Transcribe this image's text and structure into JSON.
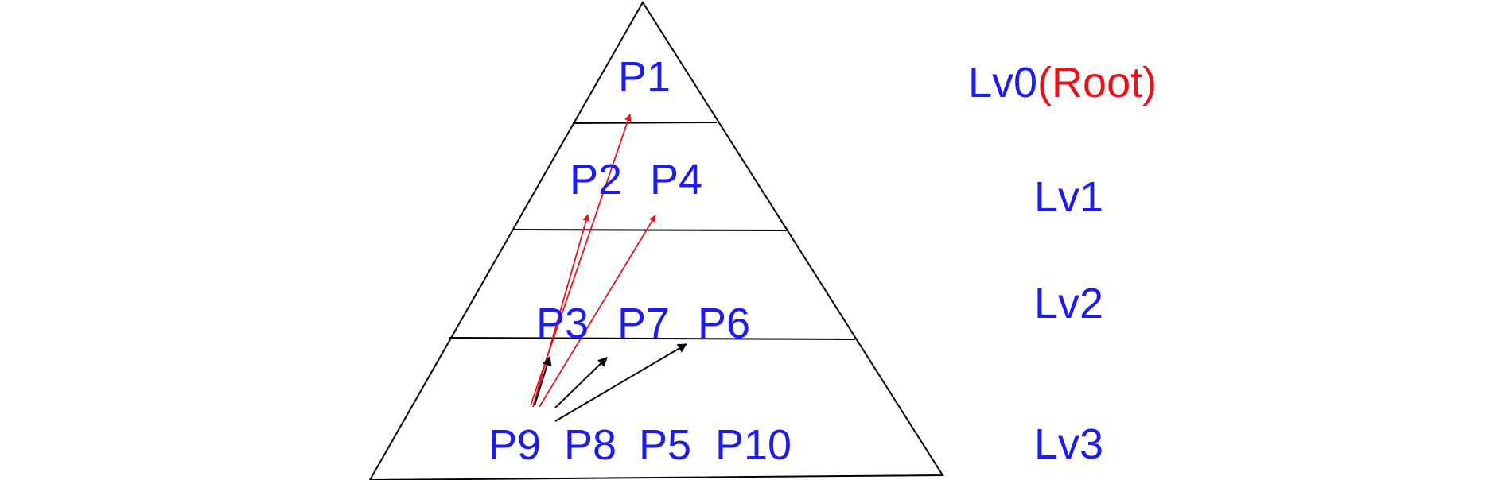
{
  "colors": {
    "node_text": "#1c1cf0",
    "root_text": "#e8131a",
    "outline": "#000000",
    "red_arrow": "#e8131a",
    "black_arrow": "#000000"
  },
  "levels": [
    {
      "name": "Lv0",
      "suffix": "(Root)"
    },
    {
      "name": "Lv1",
      "suffix": ""
    },
    {
      "name": "Lv2",
      "suffix": ""
    },
    {
      "name": "Lv3",
      "suffix": ""
    }
  ],
  "nodes": {
    "lv0": [
      "P1"
    ],
    "lv1": [
      "P2",
      "P4"
    ],
    "lv2": [
      "P3",
      "P7",
      "P6"
    ],
    "lv3": [
      "P9",
      "P8",
      "P5",
      "P10"
    ]
  },
  "arrows": {
    "red": [
      {
        "from": "P9",
        "to": "P1"
      },
      {
        "from": "P9",
        "to": "P2"
      },
      {
        "from": "P9",
        "to": "P4"
      }
    ],
    "black": [
      {
        "from": "P9",
        "to": "P3"
      },
      {
        "from": "P8",
        "to": "P7"
      },
      {
        "from": "P8",
        "to": "P6"
      }
    ]
  }
}
